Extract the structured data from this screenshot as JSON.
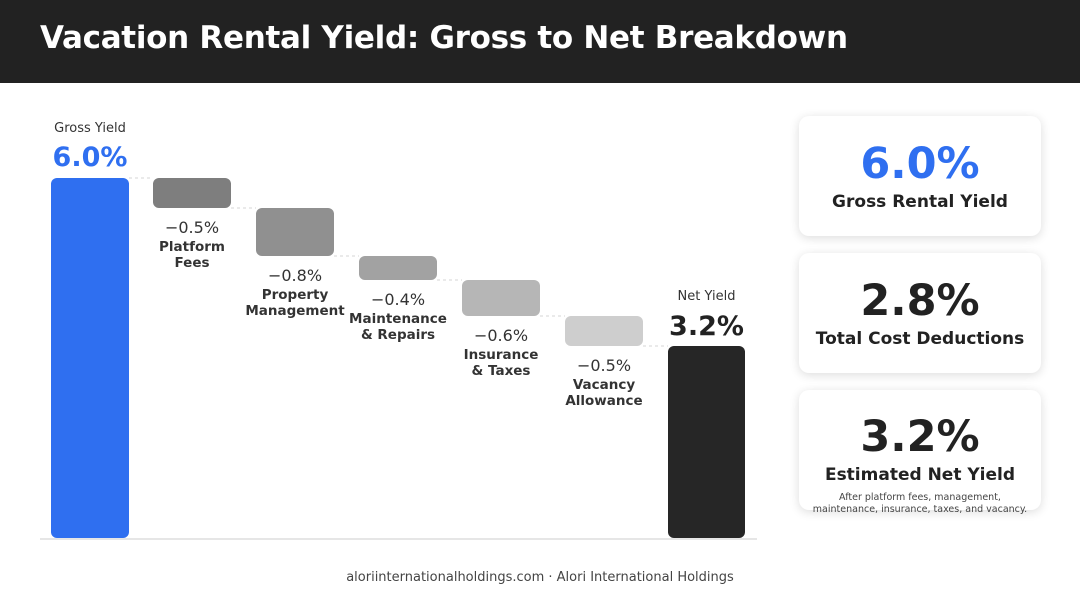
{
  "header": {
    "title": "Vacation Rental Yield: Gross to Net Breakdown"
  },
  "colors": {
    "gross_bar": "#2f6ff0",
    "net_bar": "#262626",
    "step_bars": [
      "#7e7e7e",
      "#909090",
      "#a2a2a2",
      "#b6b6b6",
      "#cecece"
    ],
    "accent_text": "#2f6ff0"
  },
  "chart_data": {
    "type": "bar",
    "subtype": "waterfall",
    "unit": "%",
    "ylim": [
      0,
      6.0
    ],
    "grid": false,
    "start": {
      "label": "Gross Yield",
      "value": 6.0,
      "value_label": "6.0%"
    },
    "steps": [
      {
        "label_lines": [
          "Platform",
          "Fees"
        ],
        "value": -0.5,
        "value_label": "−0.5%"
      },
      {
        "label_lines": [
          "Property",
          "Management"
        ],
        "value": -0.8,
        "value_label": "−0.8%"
      },
      {
        "label_lines": [
          "Maintenance",
          "& Repairs"
        ],
        "value": -0.4,
        "value_label": "−0.4%"
      },
      {
        "label_lines": [
          "Insurance",
          "& Taxes"
        ],
        "value": -0.6,
        "value_label": "−0.6%"
      },
      {
        "label_lines": [
          "Vacancy",
          "Allowance"
        ],
        "value": -0.5,
        "value_label": "−0.5%"
      }
    ],
    "end": {
      "label": "Net Yield",
      "value": 3.2,
      "value_label": "3.2%"
    }
  },
  "cards": [
    {
      "value": "6.0%",
      "label": "Gross Rental Yield"
    },
    {
      "value": "2.8%",
      "label": "Total Cost Deductions"
    },
    {
      "value": "3.2%",
      "label": "Estimated Net Yield",
      "note": "After platform fees, management, maintenance, insurance, taxes, and vacancy."
    }
  ],
  "footer": {
    "text": "aloriinternationalholdings.com · Alori International Holdings"
  }
}
